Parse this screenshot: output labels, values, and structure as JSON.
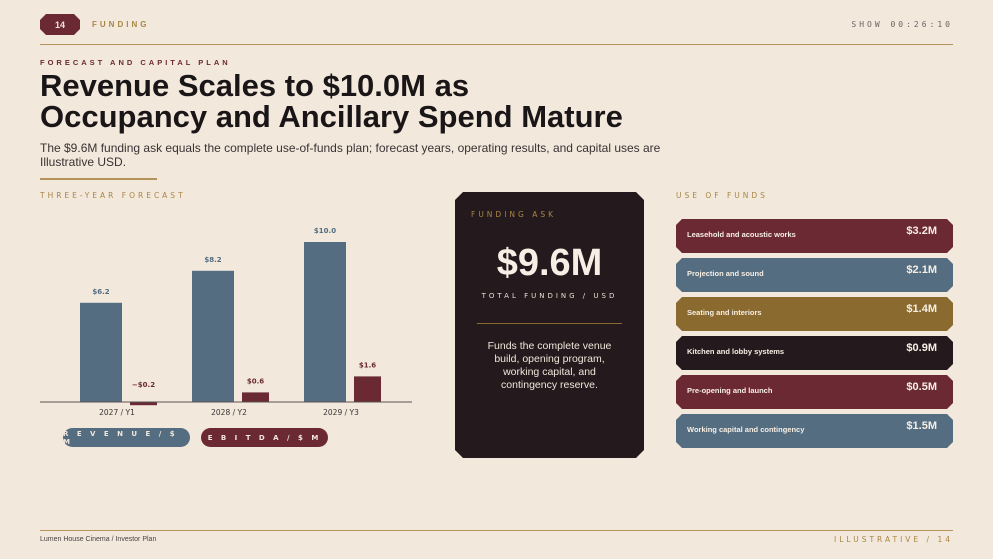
{
  "header": {
    "page_badge": "14",
    "section": "FUNDING",
    "timer": "SHOW 00:26:10"
  },
  "eyebrow": "FORECAST AND CAPITAL PLAN",
  "title_line1": "Revenue Scales to $10.0M as",
  "title_line2": "Occupancy and Ancillary Spend Mature",
  "subtitle": "The $9.6M funding ask equals the complete use-of-funds plan; forecast years, operating results, and capital uses are Illustrative USD.",
  "forecast_label": "THREE-YEAR FORECAST",
  "legend": {
    "revenue": "R E V E N U E  /  $ M",
    "ebitda": "E B I T D A  /  $ M"
  },
  "chart_data": {
    "type": "bar",
    "categories": [
      "2027 / Y1",
      "2028 / Y2",
      "2029 / Y3"
    ],
    "series": [
      {
        "name": "REVENUE / $M",
        "values": [
          6.2,
          8.2,
          10.0
        ],
        "labels": [
          "$6.2",
          "$8.2",
          "$10.0"
        ],
        "color": "#546d80"
      },
      {
        "name": "EBITDA / $M",
        "values": [
          -0.2,
          0.6,
          1.6
        ],
        "labels": [
          "−$0.2",
          "$0.6",
          "$1.6"
        ],
        "color": "#6b2a33"
      }
    ],
    "title": "THREE-YEAR FORECAST",
    "xlabel": "",
    "ylabel": "",
    "ylim": [
      0,
      10.0
    ],
    "grid": false,
    "legend_position": "bottom"
  },
  "funding_ask": {
    "label": "FUNDING ASK",
    "amount": "$9.6M",
    "unit": "TOTAL FUNDING / USD",
    "description": "Funds the complete venue build, opening program, working capital, and contingency reserve."
  },
  "use_of_funds": {
    "label": "USE OF FUNDS",
    "items": [
      {
        "label": "Leasehold and acoustic works",
        "amount": "$3.2M",
        "color": "#6b2a33"
      },
      {
        "label": "Projection and sound",
        "amount": "$2.1M",
        "color": "#546d80"
      },
      {
        "label": "Seating and interiors",
        "amount": "$1.4M",
        "color": "#8a6a2e"
      },
      {
        "label": "Kitchen and lobby systems",
        "amount": "$0.9M",
        "color": "#241a1d"
      },
      {
        "label": "Pre-opening and launch",
        "amount": "$0.5M",
        "color": "#6b2a33"
      },
      {
        "label": "Working capital and contingency",
        "amount": "$1.5M",
        "color": "#546d80"
      }
    ]
  },
  "footer": {
    "left": "Lumen House Cinema / Investor Plan",
    "right": "ILLUSTRATIVE / 14"
  }
}
